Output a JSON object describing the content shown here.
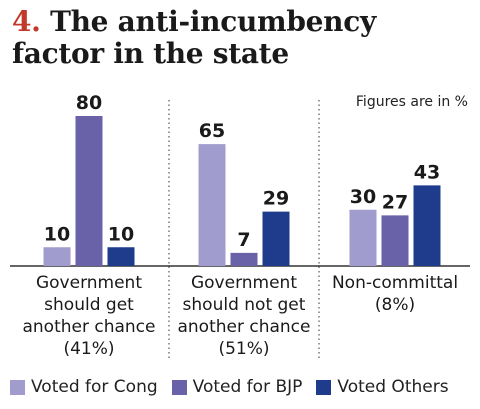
{
  "header": {
    "number": "4.",
    "title": "The anti-incumbency factor in the state",
    "note": "Figures are in %"
  },
  "colors": {
    "cong": "#a09cce",
    "bjp": "#6a62a8",
    "others": "#1f3c8c",
    "title_number": "#c0392b"
  },
  "chart_data": {
    "type": "bar",
    "title": "The anti-incumbency factor in the state",
    "note": "Figures are in %",
    "categories": [
      [
        "Government",
        "should get",
        "another chance",
        "(41%)"
      ],
      [
        "Government",
        "should not get",
        "another chance",
        "(51%)"
      ],
      [
        "Non-committal",
        "(8%)"
      ]
    ],
    "series": [
      {
        "name": "Voted for Cong",
        "values": [
          10,
          65,
          30
        ]
      },
      {
        "name": "Voted for BJP",
        "values": [
          80,
          7,
          27
        ]
      },
      {
        "name": "Voted Others",
        "values": [
          10,
          29,
          43
        ]
      }
    ],
    "ylim": [
      0,
      80
    ],
    "grid": false,
    "legend_position": "bottom"
  }
}
